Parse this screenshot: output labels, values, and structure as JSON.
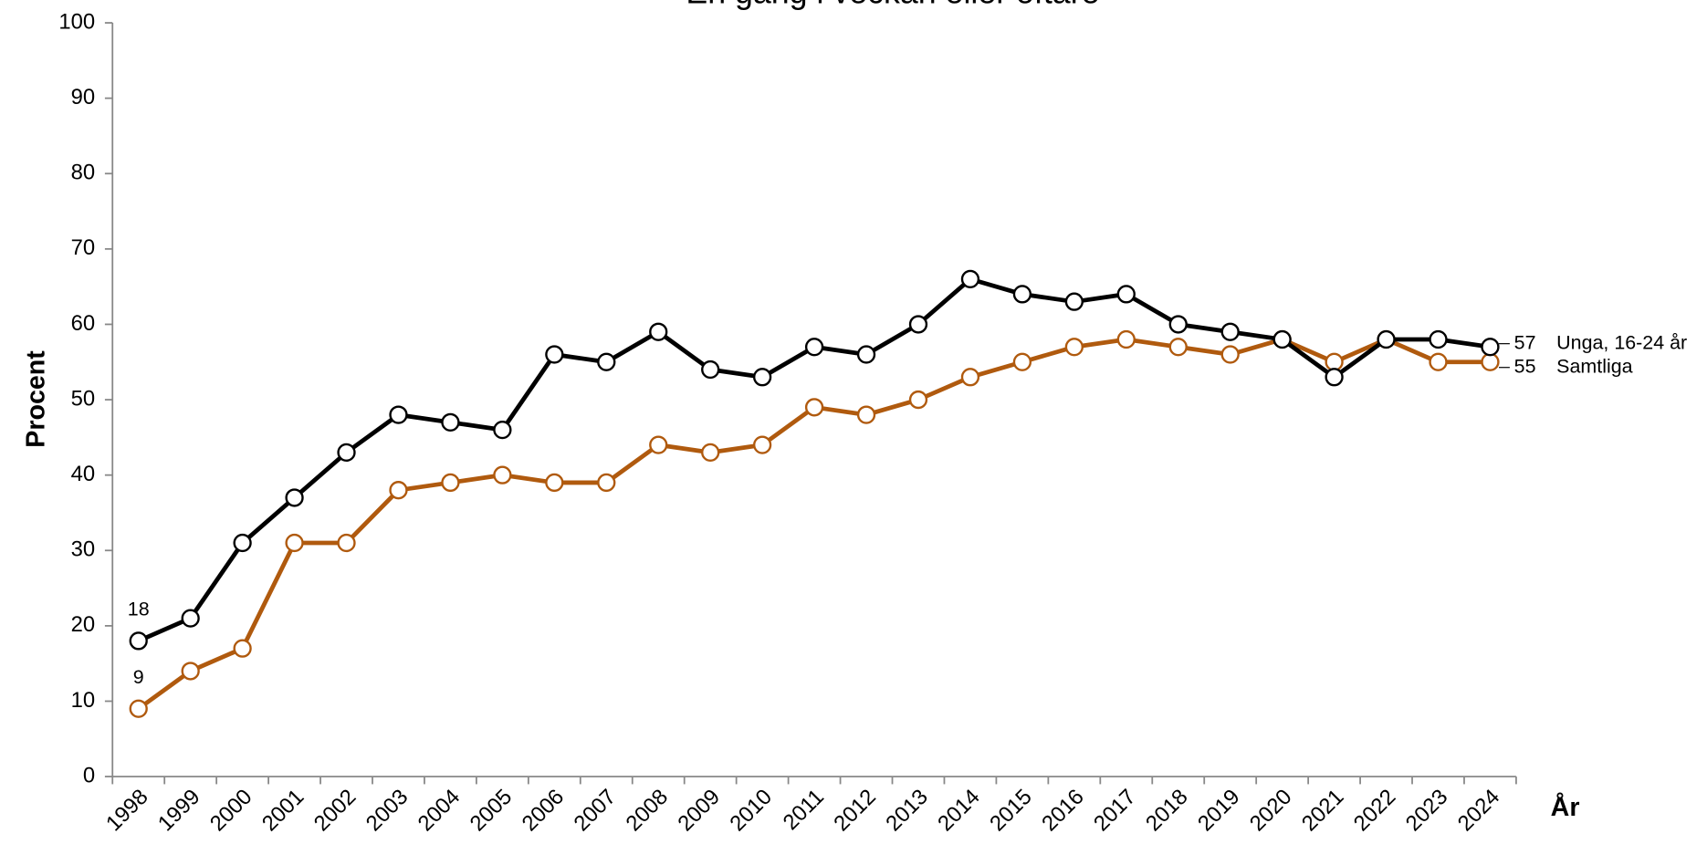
{
  "chart_data": {
    "type": "line",
    "title": "En gång i veckan eller oftare",
    "x_label": "År",
    "y_label": "Procent",
    "categories": [
      "1998",
      "1999",
      "2000",
      "2001",
      "2002",
      "2003",
      "2004",
      "2005",
      "2006",
      "2007",
      "2008",
      "2009",
      "2010",
      "2011",
      "2012",
      "2013",
      "2014",
      "2015",
      "2016",
      "2017",
      "2018",
      "2019",
      "2020",
      "2021",
      "2022",
      "2023",
      "2024"
    ],
    "series": [
      {
        "name": "Unga, 16-24 år",
        "color": "#000000",
        "values": [
          18,
          21,
          31,
          37,
          43,
          48,
          47,
          46,
          56,
          55,
          59,
          54,
          53,
          57,
          56,
          60,
          66,
          64,
          63,
          64,
          60,
          59,
          58,
          53,
          58,
          58,
          57
        ]
      },
      {
        "name": "Samtliga",
        "color": "#b05a0e",
        "values": [
          9,
          14,
          17,
          31,
          31,
          38,
          39,
          40,
          39,
          39,
          44,
          43,
          44,
          49,
          48,
          50,
          53,
          55,
          57,
          58,
          57,
          56,
          58,
          55,
          58,
          55,
          55
        ]
      }
    ],
    "ylim": [
      0,
      100
    ],
    "yticks": [
      0,
      10,
      20,
      30,
      40,
      50,
      60,
      70,
      80,
      90,
      100
    ],
    "grid": false
  }
}
